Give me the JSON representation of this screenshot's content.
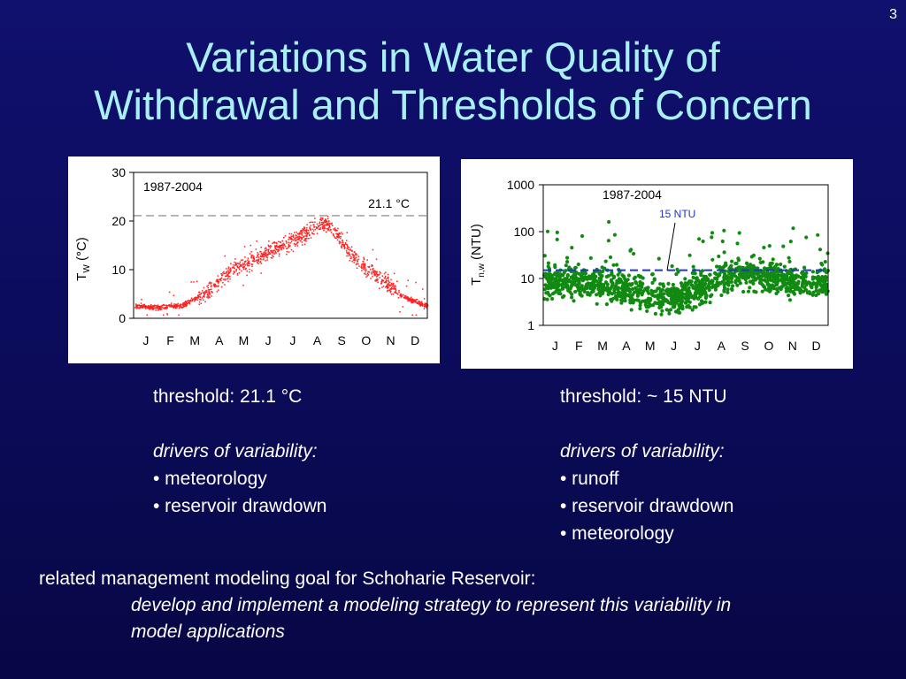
{
  "slide": {
    "page_number": "3",
    "title_lines": [
      "Variations in Water Quality of",
      "Withdrawal and Thresholds of Concern"
    ]
  },
  "left_column": {
    "threshold": "threshold: 21.1 °C",
    "drivers_heading": "drivers of variability:",
    "drivers": [
      "• meteorology",
      "• reservoir drawdown"
    ]
  },
  "right_column": {
    "threshold": "threshold: ~ 15 NTU",
    "drivers_heading": "drivers of variability:",
    "drivers": [
      "• runoff",
      "• reservoir drawdown",
      "• meteorology"
    ]
  },
  "goal": {
    "intro": "related management modeling goal for Schoharie Reservoir:",
    "detail_lines": [
      "develop and implement a modeling strategy to represent this variability in",
      "model applications"
    ]
  },
  "colors": {
    "temp_points": "#ff2020",
    "turbidity_points": "#118a11",
    "turbidity_threshold_line": "#2233cc",
    "temp_threshold_line": "#808080"
  },
  "chart_data": [
    {
      "type": "scatter",
      "annotation": "1987-2004",
      "ylabel_main": "T",
      "ylabel_sub": "W",
      "ylabel_tail": " (°C)",
      "ylim": [
        0,
        30
      ],
      "yticks": [
        "0",
        "10",
        "20",
        "30"
      ],
      "xticks": [
        "J",
        "F",
        "M",
        "A",
        "M",
        "J",
        "J",
        "A",
        "S",
        "O",
        "N",
        "D"
      ],
      "threshold": {
        "value": 21.1,
        "label": "21.1 °C",
        "style": "dashed"
      },
      "seasonal_profile": {
        "day_of_year": [
          1,
          30,
          60,
          91,
          121,
          152,
          182,
          213,
          232,
          244,
          274,
          305,
          335,
          365
        ],
        "mean_value": [
          2.6,
          2.3,
          2.8,
          5.5,
          10.0,
          12.5,
          15.0,
          17.5,
          19.5,
          19.0,
          12.5,
          8.5,
          4.5,
          2.6
        ]
      }
    },
    {
      "type": "scatter",
      "annotation": "1987-2004",
      "ylabel_main": "T",
      "ylabel_sub": "n,w",
      "ylabel_tail": " (NTU)",
      "yscale": "log",
      "ylim": [
        1,
        1000
      ],
      "yticks": [
        "1",
        "10",
        "100",
        "1000"
      ],
      "xticks": [
        "J",
        "F",
        "M",
        "A",
        "M",
        "J",
        "J",
        "A",
        "S",
        "O",
        "N",
        "D"
      ],
      "threshold": {
        "value": 15,
        "label": "15 NTU",
        "style": "dashed"
      },
      "seasonal_profile": {
        "day_of_year": [
          1,
          45,
          90,
          120,
          150,
          180,
          210,
          240,
          270,
          300,
          330,
          365
        ],
        "median_value": [
          8,
          9,
          7,
          5,
          4,
          4,
          7,
          12,
          12,
          10,
          9,
          8
        ]
      }
    }
  ]
}
